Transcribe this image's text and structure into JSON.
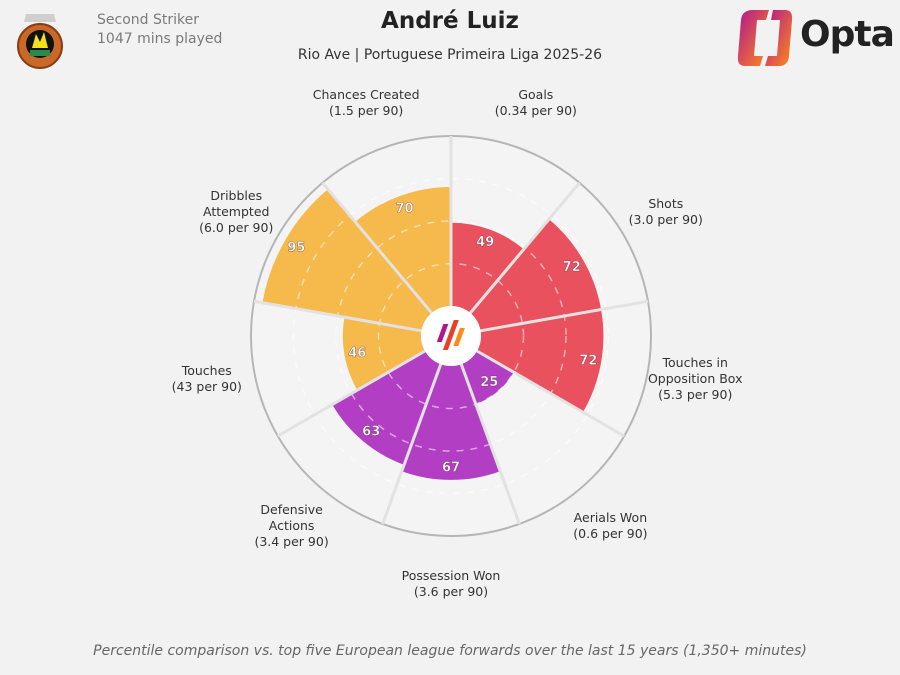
{
  "header": {
    "title": "André Luiz",
    "subtitle": "Rio Ave | Portuguese Primeira Liga 2025-26",
    "position": "Second Striker",
    "minutes": "1047 mins played",
    "brand": "Opta"
  },
  "footer": "Percentile comparison vs. top five European league forwards over the last 15 years (1,350+ minutes)",
  "colors": {
    "attacking": "#e8515d",
    "defending": "#b23ec4",
    "possession": "#f5b94c",
    "background": "#f2f2f2"
  },
  "chart_data": {
    "type": "pie",
    "subtype": "polar-percentile (pizza)",
    "range": [
      0,
      100
    ],
    "gridlines": [
      25,
      50,
      75
    ],
    "categories": [
      {
        "label": [
          "Goals"
        ],
        "value_text": "(0.34 per 90)",
        "percentile": 49,
        "group": "attacking"
      },
      {
        "label": [
          "Shots"
        ],
        "value_text": "(3.0 per 90)",
        "percentile": 72,
        "group": "attacking"
      },
      {
        "label": [
          "Touches in",
          "Opposition Box"
        ],
        "value_text": "(5.3 per 90)",
        "percentile": 72,
        "group": "attacking"
      },
      {
        "label": [
          "Aerials Won"
        ],
        "value_text": "(0.6 per 90)",
        "percentile": 25,
        "group": "defending"
      },
      {
        "label": [
          "Possession Won"
        ],
        "value_text": "(3.6 per 90)",
        "percentile": 67,
        "group": "defending"
      },
      {
        "label": [
          "Defensive",
          "Actions"
        ],
        "value_text": "(3.4 per 90)",
        "percentile": 63,
        "group": "defending"
      },
      {
        "label": [
          "Touches"
        ],
        "value_text": "(43 per 90)",
        "percentile": 46,
        "group": "possession"
      },
      {
        "label": [
          "Dribbles",
          "Attempted"
        ],
        "value_text": "(6.0 per 90)",
        "percentile": 95,
        "group": "possession"
      },
      {
        "label": [
          "Chances Created"
        ],
        "value_text": "(1.5 per 90)",
        "percentile": 70,
        "group": "possession"
      }
    ]
  }
}
